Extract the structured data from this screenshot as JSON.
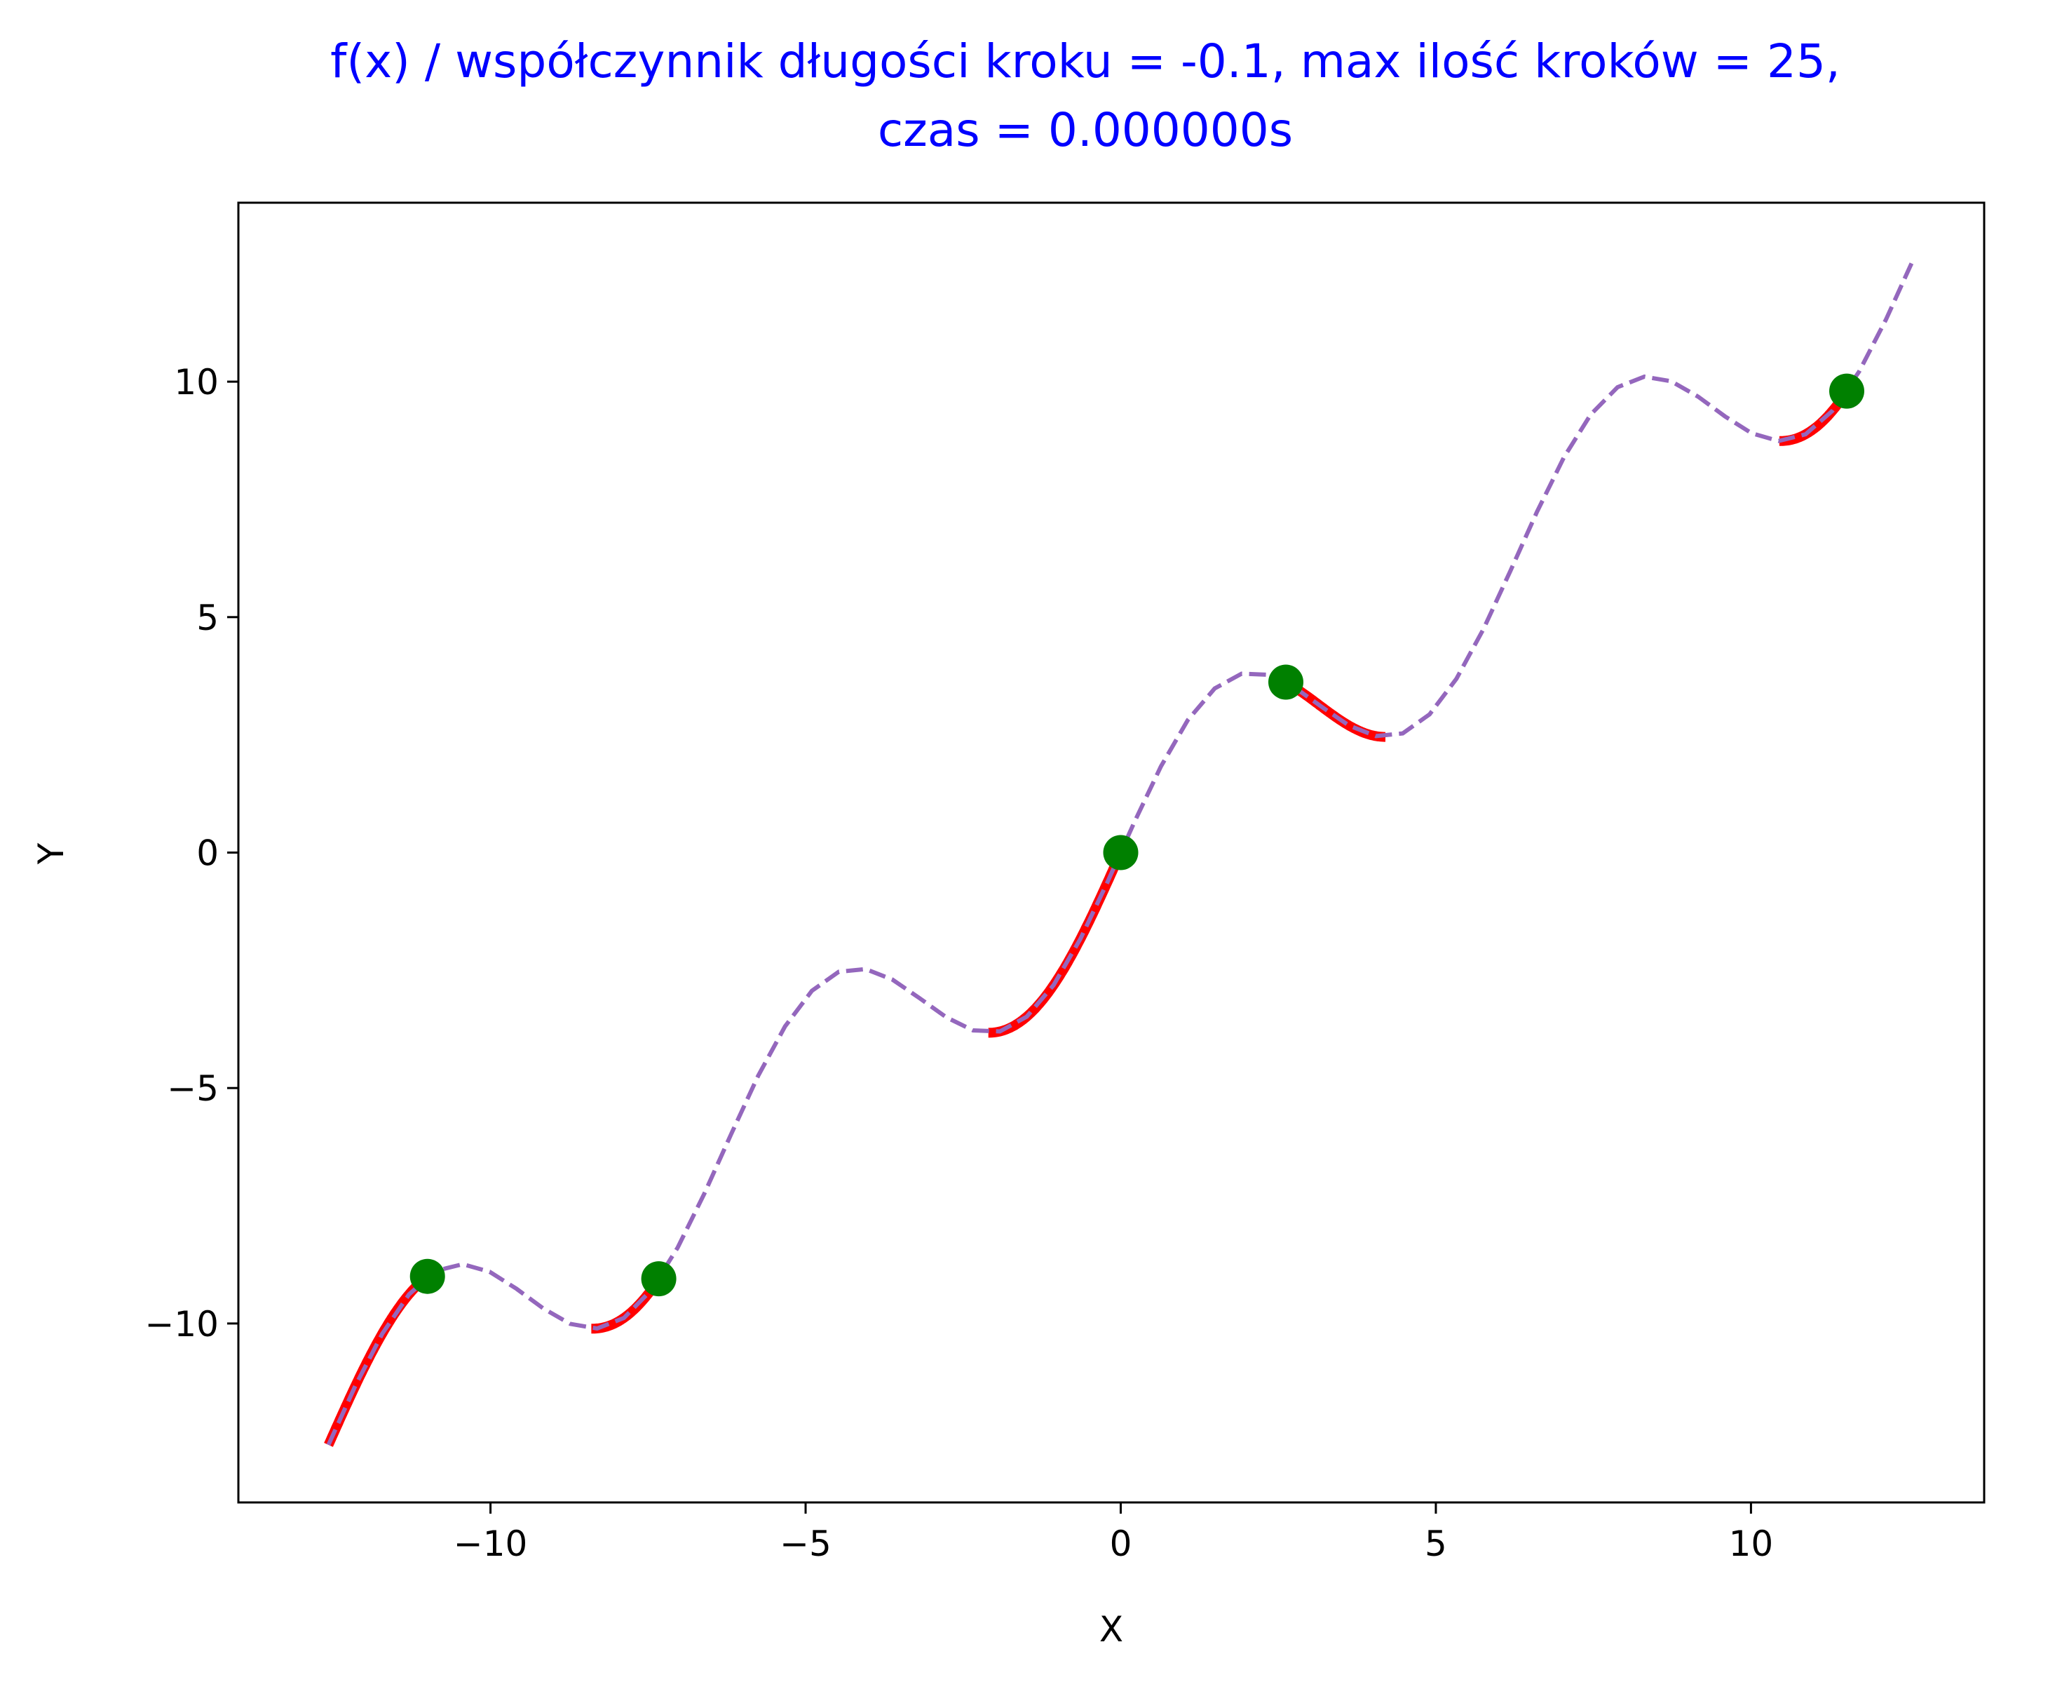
{
  "chart_data": {
    "type": "line",
    "title_lines": [
      "f(x) / współczynnik długości kroku = -0.1, max ilość kroków = 25,",
      "czas = 0.000000s"
    ],
    "title_color": "#0000ff",
    "xlabel": "X",
    "ylabel": "Y",
    "xlim": [
      -14.0,
      13.7
    ],
    "ylim": [
      -13.8,
      13.8
    ],
    "xticks": [
      -10,
      -5,
      0,
      5,
      10
    ],
    "yticks": [
      -10,
      -5,
      0,
      5,
      10
    ],
    "xtick_labels": [
      "−10",
      "−5",
      "0",
      "5",
      "10"
    ],
    "ytick_labels": [
      "−10",
      "−5",
      "0",
      "5",
      "10"
    ],
    "grid": false,
    "function": {
      "expression": "x + 2*sin(x)",
      "domain": [
        -12.57,
        12.57
      ],
      "samples": 60,
      "color": "#9467bd",
      "style": "dashed"
    },
    "descent_paths": [
      {
        "from": -12.57,
        "to": -11.0
      },
      {
        "from": -8.4,
        "to": -7.33
      },
      {
        "from": -2.1,
        "to": 0.0
      },
      {
        "from": 2.62,
        "to": 4.2
      },
      {
        "from": 10.45,
        "to": 11.52
      }
    ],
    "descent_color": "#ff0000",
    "start_points": [
      {
        "x": -11.0,
        "y": -9.0
      },
      {
        "x": -7.33,
        "y": -9.05
      },
      {
        "x": 0.0,
        "y": 0.0
      },
      {
        "x": 2.62,
        "y": 3.62
      },
      {
        "x": 11.52,
        "y": 9.8
      }
    ],
    "point_color": "#008000"
  }
}
